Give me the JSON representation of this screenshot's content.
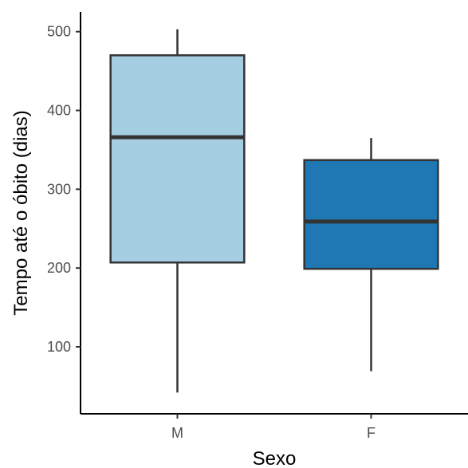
{
  "chart_data": {
    "type": "boxplot",
    "xlabel": "Sexo",
    "ylabel": "Tempo até o óbito (dias)",
    "categories": [
      "M",
      "F"
    ],
    "boxes": [
      {
        "category": "M",
        "min": 42,
        "q1": 207,
        "median": 366,
        "q3": 470,
        "max": 503,
        "color": "#a6cee3"
      },
      {
        "category": "F",
        "min": 69,
        "q1": 199,
        "median": 259,
        "q3": 337,
        "max": 365,
        "color": "#1f78b4"
      }
    ],
    "yticks": [
      100,
      200,
      300,
      400,
      500
    ],
    "ylim": [
      15,
      525
    ],
    "grid": false,
    "legend": "none"
  }
}
